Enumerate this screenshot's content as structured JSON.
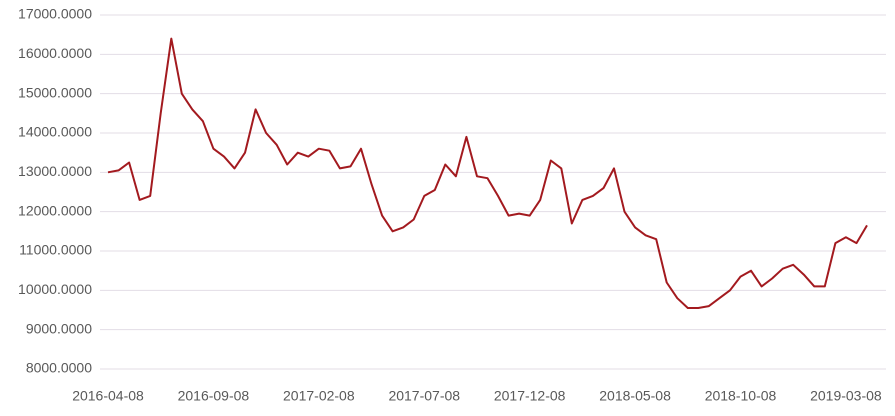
{
  "chart_data": {
    "type": "line",
    "categories": [
      "2016-04-08",
      null,
      null,
      null,
      null,
      null,
      null,
      null,
      null,
      null,
      "2016-09-08",
      null,
      null,
      null,
      null,
      null,
      null,
      null,
      null,
      null,
      "2017-02-08",
      null,
      null,
      null,
      null,
      null,
      null,
      null,
      null,
      null,
      "2017-07-08",
      null,
      null,
      null,
      null,
      null,
      null,
      null,
      null,
      null,
      "2017-12-08",
      null,
      null,
      null,
      null,
      null,
      null,
      null,
      null,
      null,
      "2018-05-08",
      null,
      null,
      null,
      null,
      null,
      null,
      null,
      null,
      null,
      "2018-10-08",
      null,
      null,
      null,
      null,
      null,
      null,
      null,
      null,
      null,
      "2019-03-08",
      null,
      null
    ],
    "series": [
      {
        "color": "#a31a1f",
        "values": [
          13000,
          13050,
          13250,
          12300,
          12400,
          14500,
          16400,
          15000,
          14600,
          14300,
          13600,
          13400,
          13100,
          13500,
          14600,
          14000,
          13700,
          13200,
          13500,
          13400,
          13600,
          13550,
          13100,
          13150,
          13600,
          12700,
          11900,
          11500,
          11600,
          11800,
          12400,
          12550,
          13200,
          12900,
          13900,
          12900,
          12850,
          12400,
          11900,
          11950,
          11900,
          12300,
          13300,
          13100,
          11700,
          12300,
          12400,
          12600,
          13100,
          12000,
          11600,
          11400,
          11300,
          10200,
          9800,
          9550,
          9550,
          9600,
          9800,
          10000,
          10350,
          10500,
          10100,
          10300,
          10550,
          10650,
          10400,
          10100,
          10100,
          11200,
          11350,
          11200,
          11650
        ]
      }
    ],
    "ylim": [
      8000,
      17000
    ],
    "yticks": [
      {
        "value": 8000,
        "label": "8000.0000"
      },
      {
        "value": 9000,
        "label": "9000.0000"
      },
      {
        "value": 10000,
        "label": "10000.0000"
      },
      {
        "value": 11000,
        "label": "11000.0000"
      },
      {
        "value": 12000,
        "label": "12000.0000"
      },
      {
        "value": 13000,
        "label": "13000.0000"
      },
      {
        "value": 14000,
        "label": "14000.0000"
      },
      {
        "value": 15000,
        "label": "15000.0000"
      },
      {
        "value": 16000,
        "label": "16000.0000"
      },
      {
        "value": 17000,
        "label": "17000.0000"
      }
    ],
    "grid": true
  }
}
